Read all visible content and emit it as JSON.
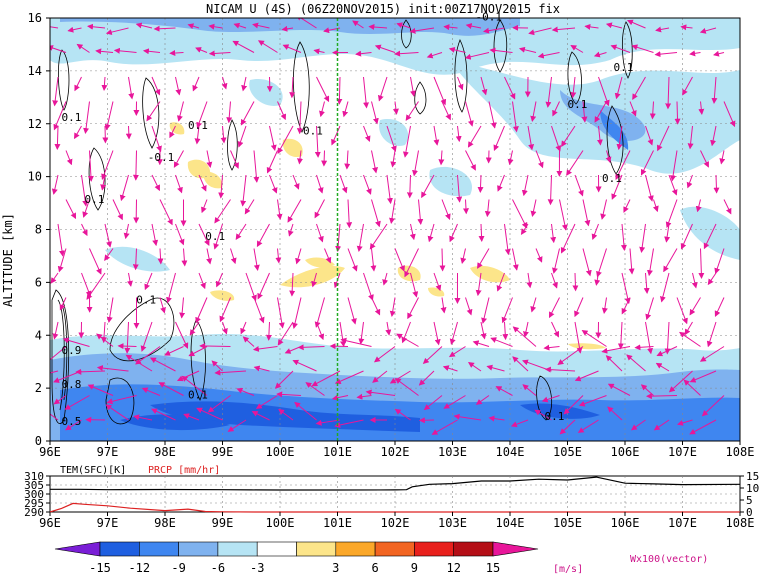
{
  "chart_data": [
    {
      "type": "heatmap",
      "title": "NICAM U (4S) (06Z20NOV2015) init:00Z17NOV2015 fix",
      "ylabel": "ALTITUDE [km]",
      "xlabel": "",
      "x_ticks": [
        "96E",
        "97E",
        "98E",
        "99E",
        "100E",
        "101E",
        "102E",
        "103E",
        "104E",
        "105E",
        "106E",
        "107E",
        "108E"
      ],
      "y_ticks": [
        "0",
        "2",
        "4",
        "6",
        "8",
        "10",
        "12",
        "14",
        "16"
      ],
      "xlim": [
        96,
        108
      ],
      "ylim": [
        0,
        16
      ],
      "grid": true,
      "marker_line": {
        "x": 101,
        "color": "#22aa22"
      },
      "contour_labels": [
        {
          "text": "0.1",
          "x": 96.2,
          "y": 12.1
        },
        {
          "text": "0.1",
          "x": 98.4,
          "y": 11.8
        },
        {
          "text": "0.1",
          "x": 100.4,
          "y": 11.6
        },
        {
          "text": "-0.1",
          "x": 97.7,
          "y": 10.6
        },
        {
          "text": "0.1",
          "x": 96.6,
          "y": 9.0
        },
        {
          "text": "0.1",
          "x": 98.7,
          "y": 7.6
        },
        {
          "text": "-0.1",
          "x": 103.4,
          "y": 15.9
        },
        {
          "text": "0.1",
          "x": 105.0,
          "y": 12.6
        },
        {
          "text": "0.1",
          "x": 105.8,
          "y": 14.0
        },
        {
          "text": "0.1",
          "x": 105.6,
          "y": 9.8
        },
        {
          "text": "0.1",
          "x": 97.5,
          "y": 5.2
        },
        {
          "text": "0.1",
          "x": 98.4,
          "y": 1.6
        },
        {
          "text": "0.1",
          "x": 104.6,
          "y": 0.8
        },
        {
          "text": "0.9",
          "x": 96.2,
          "y": 3.3
        },
        {
          "text": "0.8",
          "x": 96.2,
          "y": 2.0
        },
        {
          "text": "0.5",
          "x": 96.2,
          "y": 0.6
        }
      ]
    },
    {
      "type": "line",
      "series": [
        {
          "name": "TEM(SFC)[K]",
          "color": "#000000"
        },
        {
          "name": "PRCP [mm/hr]",
          "color": "#dd2222"
        }
      ],
      "x_ticks": [
        "96E",
        "97E",
        "98E",
        "99E",
        "100E",
        "101E",
        "102E",
        "103E",
        "104E",
        "105E",
        "106E",
        "107E",
        "108E"
      ],
      "y_ticks_left": [
        "310",
        "305",
        "300",
        "295",
        "290"
      ],
      "y_ticks_right": [
        "15",
        "10",
        "5",
        "0"
      ],
      "xlim": [
        96,
        108
      ],
      "temperature": {
        "x": [
          96,
          96.5,
          97,
          98,
          99,
          99.5,
          100,
          101,
          102,
          102.2,
          102.3,
          102.6,
          103,
          103.5,
          104,
          104.5,
          105,
          105.5,
          106,
          106.5,
          107,
          108
        ],
        "y": [
          302.6,
          302.6,
          302.4,
          302.5,
          302.4,
          302.3,
          302.2,
          302.2,
          302.3,
          302.4,
          304.0,
          305.4,
          305.8,
          307.2,
          307.2,
          308.2,
          307.8,
          309.4,
          306.0,
          305.6,
          305.2,
          305.4
        ]
      },
      "precip": {
        "x": [
          96,
          96.2,
          96.4,
          96.6,
          97,
          97.4,
          98,
          98.4,
          98.7,
          99,
          99.6,
          100,
          101,
          102,
          103,
          104,
          105,
          106,
          107,
          108
        ],
        "y": [
          0,
          1.5,
          3.6,
          3.2,
          2.6,
          1.6,
          0.6,
          1.2,
          0.2,
          0.1,
          0,
          0,
          0,
          0,
          0,
          0,
          0,
          0,
          0,
          0
        ]
      }
    }
  ],
  "colorbar": {
    "levels": [
      "-15",
      "-12",
      "-9",
      "-6",
      "-3",
      "3",
      "6",
      "9",
      "12",
      "15"
    ],
    "colors": [
      "#7a1ed6",
      "#1f5fe0",
      "#3f86f0",
      "#7fb2ef",
      "#b6e4f4",
      "#ffffff",
      "#fce58a",
      "#fba82a",
      "#f26522",
      "#e8201c",
      "#b40e16",
      "#e8169a"
    ],
    "unit": "[m/s]"
  },
  "vector_label": "Wx100(vector)"
}
